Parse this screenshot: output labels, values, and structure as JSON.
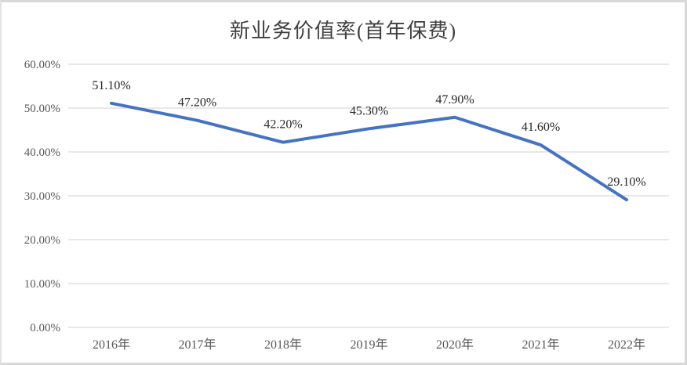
{
  "chart": {
    "title": "新业务价值率(首年保费)"
  },
  "chart_data": {
    "type": "line",
    "title": "新业务价值率(首年保费)",
    "categories": [
      "2016年",
      "2017年",
      "2018年",
      "2019年",
      "2020年",
      "2021年",
      "2022年"
    ],
    "values": [
      51.1,
      47.2,
      42.2,
      45.3,
      47.9,
      41.6,
      29.1
    ],
    "data_labels": [
      "51.10%",
      "47.20%",
      "42.20%",
      "45.30%",
      "47.90%",
      "41.60%",
      "29.10%"
    ],
    "xlabel": "",
    "ylabel": "",
    "ylim": [
      0,
      60
    ],
    "y_tick_step": 10,
    "y_tick_labels": [
      "0.00%",
      "10.00%",
      "20.00%",
      "30.00%",
      "40.00%",
      "50.00%",
      "60.00%"
    ],
    "grid": true,
    "legend": "none",
    "colors": {
      "line": "#4472C4",
      "gridline": "#d9d9d9",
      "axis_text": "#595959",
      "data_label_text": "#262626",
      "title_text": "#404040",
      "background": "#ffffff"
    }
  }
}
